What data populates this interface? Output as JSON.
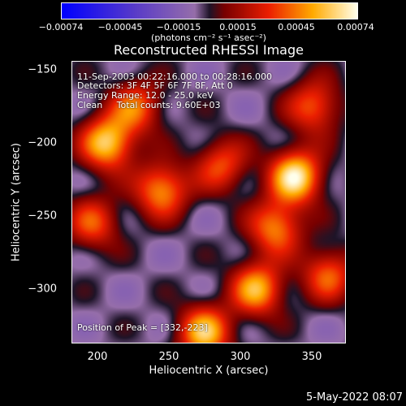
{
  "chart_data": {
    "type": "heatmap",
    "title": "Reconstructed RHESSI Image",
    "xlabel": "Heliocentric X (arcsec)",
    "ylabel": "Heliocentric Y (arcsec)",
    "xlim": [
      175,
      367
    ],
    "ylim": [
      -337,
      -144
    ],
    "x_ticks": [
      "200",
      "250",
      "300",
      "350"
    ],
    "y_ticks": [
      "−150",
      "−200",
      "−250",
      "−300"
    ],
    "colorbar": {
      "ticks": [
        "−0.00074",
        "−0.00045",
        "−0.00015",
        "0.00015",
        "0.00045",
        "0.00074"
      ],
      "units": "(photons cm⁻² s⁻¹ asec⁻²)",
      "range": [
        -0.00074,
        0.00074
      ]
    },
    "info_lines": [
      "11-Sep-2003 00:22:16.000 to 00:28:16.000",
      "Detectors: 3F 4F 5F 6F 7F 8F, Att 0",
      "Energy Range: 12.0 - 25.0 keV",
      "Clean     Total counts: 9.60E+03"
    ],
    "peak_label": "Position of Peak = [332,-223]",
    "bright_sources": [
      {
        "x": 200,
        "y": -200,
        "v": 0.9
      },
      {
        "x": 332,
        "y": -223,
        "v": 1.0
      },
      {
        "x": 238,
        "y": -232,
        "v": 0.75
      },
      {
        "x": 305,
        "y": -300,
        "v": 0.8
      },
      {
        "x": 268,
        "y": -330,
        "v": 0.85
      },
      {
        "x": 345,
        "y": -175,
        "v": 0.6
      },
      {
        "x": 318,
        "y": -258,
        "v": 0.7
      },
      {
        "x": 190,
        "y": -255,
        "v": 0.55
      },
      {
        "x": 220,
        "y": -175,
        "v": 0.6
      },
      {
        "x": 280,
        "y": -215,
        "v": 0.55
      },
      {
        "x": 355,
        "y": -290,
        "v": 0.6
      }
    ]
  },
  "footer": {
    "datestamp": "5-May-2022 08:07"
  }
}
